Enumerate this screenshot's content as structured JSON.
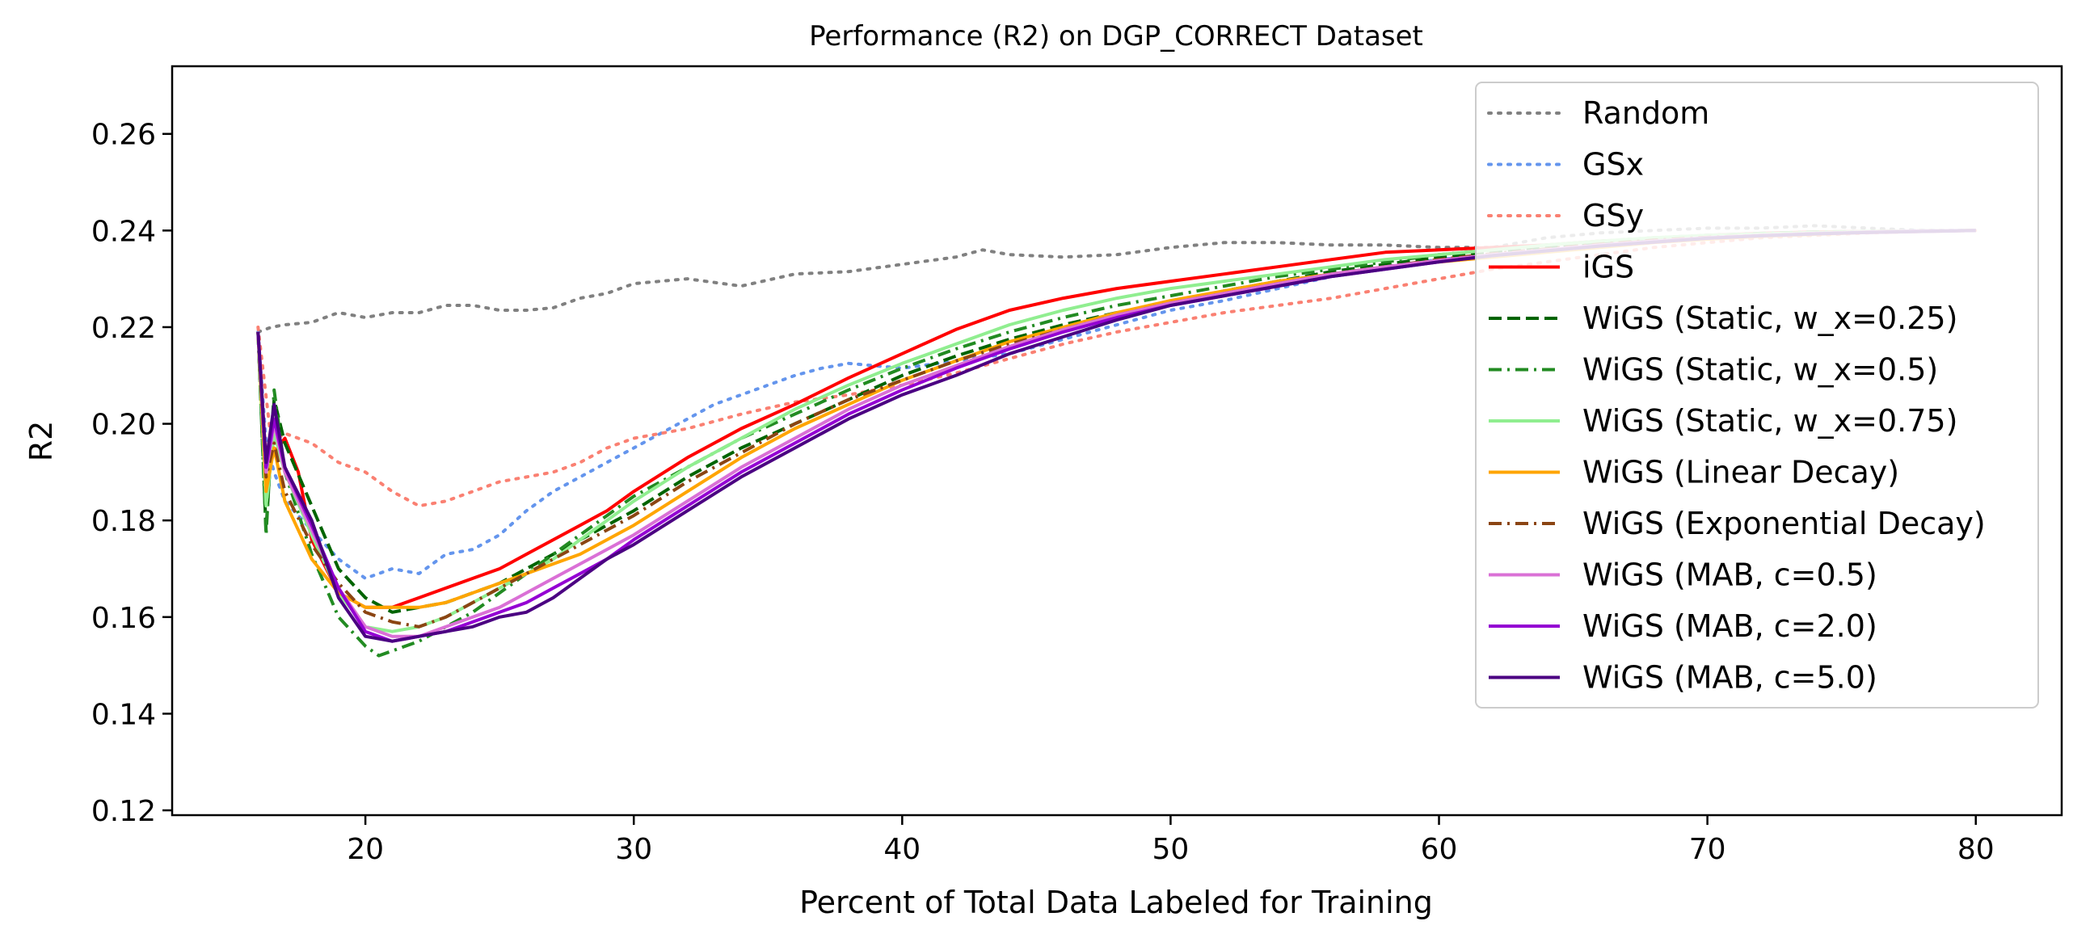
{
  "chart_data": {
    "type": "line",
    "title": "Performance (R2) on DGP_CORRECT Dataset",
    "xlabel": "Percent of Total Data Labeled for Training",
    "ylabel": "R2",
    "xlim": [
      12.8,
      83.2
    ],
    "ylim": [
      0.119,
      0.274
    ],
    "xticks": [
      20,
      30,
      40,
      50,
      60,
      70,
      80
    ],
    "yticks": [
      0.12,
      0.14,
      0.16,
      0.18,
      0.2,
      0.22,
      0.24,
      0.26
    ],
    "ytick_labels": [
      "0.12",
      "0.14",
      "0.16",
      "0.18",
      "0.20",
      "0.22",
      "0.24",
      "0.26"
    ],
    "xtick_labels": [
      "20",
      "30",
      "40",
      "50",
      "60",
      "70",
      "80"
    ],
    "grid": false,
    "legend_position": "top-right",
    "series": [
      {
        "name": "Random",
        "color": "#808080",
        "dash": "dotted",
        "x": [
          16,
          16.5,
          17,
          18,
          19,
          20,
          21,
          22,
          23,
          24,
          25,
          26,
          27,
          28,
          29,
          30,
          32,
          34,
          36,
          38,
          40,
          42,
          43,
          44,
          46,
          48,
          50,
          52,
          54,
          56,
          58,
          60,
          62,
          64,
          66,
          68,
          70,
          72,
          74,
          76,
          78,
          80
        ],
        "y": [
          0.219,
          0.22,
          0.2205,
          0.221,
          0.223,
          0.222,
          0.223,
          0.223,
          0.2245,
          0.2245,
          0.2235,
          0.2235,
          0.224,
          0.226,
          0.227,
          0.229,
          0.23,
          0.2285,
          0.231,
          0.2315,
          0.233,
          0.2345,
          0.236,
          0.235,
          0.2345,
          0.235,
          0.2365,
          0.2375,
          0.2375,
          0.237,
          0.237,
          0.2365,
          0.2365,
          0.2385,
          0.2395,
          0.24,
          0.2405,
          0.2405,
          0.241,
          0.2405,
          0.24,
          0.24
        ]
      },
      {
        "name": "GSx",
        "color": "#6495ED",
        "dash": "dotted",
        "x": [
          16,
          16.3,
          16.6,
          17,
          18,
          19,
          20,
          21,
          22,
          23,
          24,
          25,
          26,
          27,
          28,
          29,
          30,
          31,
          32,
          33,
          34,
          35,
          36,
          37,
          38,
          39,
          40,
          42,
          44,
          46,
          48,
          50,
          52,
          54,
          56,
          58,
          60,
          62,
          64,
          66,
          68,
          70,
          72,
          74,
          76,
          78,
          80
        ],
        "y": [
          0.219,
          0.196,
          0.19,
          0.184,
          0.178,
          0.172,
          0.168,
          0.17,
          0.169,
          0.173,
          0.174,
          0.177,
          0.182,
          0.186,
          0.189,
          0.192,
          0.195,
          0.198,
          0.201,
          0.204,
          0.206,
          0.208,
          0.21,
          0.2115,
          0.2125,
          0.212,
          0.2115,
          0.213,
          0.2145,
          0.2175,
          0.2205,
          0.2235,
          0.2255,
          0.228,
          0.2305,
          0.2325,
          0.234,
          0.235,
          0.236,
          0.237,
          0.238,
          0.2385,
          0.239,
          0.2395,
          0.2398,
          0.24,
          0.24
        ]
      },
      {
        "name": "GSy",
        "color": "#FA8072",
        "dash": "dotted",
        "x": [
          16,
          16.5,
          17,
          18,
          19,
          20,
          21,
          22,
          23,
          24,
          25,
          26,
          27,
          28,
          29,
          30,
          32,
          34,
          36,
          38,
          40,
          42,
          44,
          46,
          48,
          50,
          52,
          54,
          56,
          58,
          60,
          62,
          64,
          66,
          68,
          70,
          72,
          74,
          76,
          78,
          80
        ],
        "y": [
          0.22,
          0.196,
          0.198,
          0.196,
          0.192,
          0.19,
          0.186,
          0.183,
          0.184,
          0.186,
          0.188,
          0.189,
          0.19,
          0.192,
          0.195,
          0.197,
          0.199,
          0.202,
          0.2045,
          0.206,
          0.208,
          0.2105,
          0.2135,
          0.2165,
          0.219,
          0.221,
          0.223,
          0.2245,
          0.226,
          0.228,
          0.23,
          0.232,
          0.2335,
          0.235,
          0.2365,
          0.2375,
          0.2385,
          0.239,
          0.2395,
          0.2398,
          0.24
        ]
      },
      {
        "name": "iGS",
        "color": "#FF0000",
        "dash": "solid",
        "x": [
          16,
          16.3,
          16.6,
          17,
          17.5,
          18,
          19,
          20,
          21,
          22,
          23,
          24,
          25,
          26,
          27,
          28,
          29,
          30,
          32,
          34,
          36,
          38,
          40,
          42,
          44,
          46,
          48,
          50,
          52,
          54,
          56,
          58,
          60,
          62,
          64,
          66,
          68,
          70,
          72,
          74,
          76,
          78,
          80
        ],
        "y": [
          0.219,
          0.192,
          0.194,
          0.197,
          0.19,
          0.176,
          0.165,
          0.162,
          0.162,
          0.164,
          0.166,
          0.168,
          0.17,
          0.173,
          0.176,
          0.179,
          0.182,
          0.186,
          0.193,
          0.199,
          0.204,
          0.2095,
          0.2145,
          0.2195,
          0.2235,
          0.226,
          0.228,
          0.2295,
          0.231,
          0.2325,
          0.234,
          0.2355,
          0.236,
          0.2365,
          0.237,
          0.2378,
          0.2384,
          0.239,
          0.2394,
          0.2397,
          0.2398,
          0.2399,
          0.24
        ]
      },
      {
        "name": "WiGS (Static, w_x=0.25)",
        "color": "#006400",
        "dash": "dashed",
        "x": [
          16,
          16.3,
          16.6,
          17,
          18,
          19,
          20,
          21,
          22,
          23,
          24,
          25,
          26,
          27,
          28,
          29,
          30,
          32,
          34,
          36,
          38,
          40,
          42,
          44,
          46,
          48,
          50,
          52,
          54,
          56,
          58,
          60,
          62,
          64,
          66,
          68,
          70,
          72,
          74,
          76,
          78,
          80
        ],
        "y": [
          0.219,
          0.178,
          0.205,
          0.196,
          0.183,
          0.17,
          0.164,
          0.161,
          0.162,
          0.163,
          0.165,
          0.167,
          0.17,
          0.173,
          0.176,
          0.179,
          0.182,
          0.189,
          0.195,
          0.2,
          0.205,
          0.21,
          0.214,
          0.2175,
          0.2205,
          0.223,
          0.225,
          0.2275,
          0.2295,
          0.2315,
          0.233,
          0.2345,
          0.2355,
          0.2365,
          0.2375,
          0.2382,
          0.2388,
          0.2392,
          0.2395,
          0.2397,
          0.2399,
          0.24
        ]
      },
      {
        "name": "WiGS (Static, w_x=0.5)",
        "color": "#228B22",
        "dash": "dashdot",
        "x": [
          16,
          16.3,
          16.6,
          17,
          18,
          19,
          20,
          20.5,
          21,
          22,
          23,
          24,
          25,
          26,
          27,
          28,
          29,
          30,
          32,
          34,
          36,
          38,
          40,
          42,
          44,
          46,
          48,
          50,
          52,
          54,
          56,
          58,
          60,
          62,
          64,
          66,
          68,
          70,
          72,
          74,
          76,
          78,
          80
        ],
        "y": [
          0.219,
          0.177,
          0.207,
          0.19,
          0.173,
          0.16,
          0.154,
          0.152,
          0.153,
          0.155,
          0.158,
          0.161,
          0.165,
          0.169,
          0.173,
          0.177,
          0.181,
          0.185,
          0.191,
          0.197,
          0.202,
          0.207,
          0.2115,
          0.2155,
          0.219,
          0.222,
          0.2245,
          0.2265,
          0.2285,
          0.2305,
          0.232,
          0.2335,
          0.235,
          0.236,
          0.237,
          0.2378,
          0.2385,
          0.239,
          0.2394,
          0.2397,
          0.2398,
          0.2399,
          0.24
        ]
      },
      {
        "name": "WiGS (Static, w_x=0.75)",
        "color": "#90EE90",
        "dash": "solid",
        "x": [
          16,
          16.3,
          16.6,
          17,
          18,
          19,
          20,
          21,
          22,
          23,
          24,
          25,
          26,
          27,
          28,
          29,
          30,
          32,
          34,
          36,
          38,
          40,
          42,
          44,
          46,
          48,
          50,
          52,
          54,
          56,
          58,
          60,
          62,
          64,
          66,
          68,
          70,
          72,
          74,
          76,
          78,
          80
        ],
        "y": [
          0.219,
          0.183,
          0.198,
          0.19,
          0.177,
          0.165,
          0.158,
          0.157,
          0.158,
          0.16,
          0.163,
          0.166,
          0.169,
          0.172,
          0.176,
          0.18,
          0.184,
          0.191,
          0.197,
          0.203,
          0.208,
          0.2125,
          0.2165,
          0.2205,
          0.2235,
          0.226,
          0.228,
          0.2295,
          0.231,
          0.2325,
          0.234,
          0.235,
          0.236,
          0.237,
          0.2378,
          0.2385,
          0.239,
          0.2393,
          0.2396,
          0.2398,
          0.2399,
          0.24
        ]
      },
      {
        "name": "WiGS (Linear Decay)",
        "color": "#FFA500",
        "dash": "solid",
        "x": [
          16,
          16.3,
          16.6,
          17,
          18,
          19,
          20,
          21,
          22,
          23,
          24,
          25,
          26,
          27,
          28,
          29,
          30,
          32,
          34,
          36,
          38,
          40,
          42,
          44,
          46,
          48,
          50,
          52,
          54,
          56,
          58,
          60,
          62,
          64,
          66,
          68,
          70,
          72,
          74,
          76,
          78,
          80
        ],
        "y": [
          0.219,
          0.186,
          0.195,
          0.184,
          0.172,
          0.165,
          0.162,
          0.162,
          0.162,
          0.163,
          0.165,
          0.167,
          0.169,
          0.171,
          0.173,
          0.176,
          0.179,
          0.186,
          0.193,
          0.199,
          0.204,
          0.209,
          0.213,
          0.217,
          0.22,
          0.223,
          0.2255,
          0.2275,
          0.2295,
          0.231,
          0.2325,
          0.2335,
          0.2345,
          0.2355,
          0.2365,
          0.2375,
          0.2382,
          0.2388,
          0.2392,
          0.2396,
          0.2398,
          0.24
        ]
      },
      {
        "name": "WiGS (Exponential Decay)",
        "color": "#8B4513",
        "dash": "dashdot",
        "x": [
          16,
          16.3,
          16.6,
          17,
          18,
          19,
          20,
          21,
          22,
          23,
          24,
          25,
          26,
          27,
          28,
          29,
          30,
          32,
          34,
          36,
          38,
          40,
          42,
          44,
          46,
          48,
          50,
          52,
          54,
          56,
          58,
          60,
          62,
          64,
          66,
          68,
          70,
          72,
          74,
          76,
          78,
          80
        ],
        "y": [
          0.219,
          0.189,
          0.196,
          0.186,
          0.175,
          0.167,
          0.161,
          0.159,
          0.158,
          0.16,
          0.163,
          0.166,
          0.169,
          0.172,
          0.175,
          0.178,
          0.181,
          0.188,
          0.194,
          0.2,
          0.205,
          0.209,
          0.213,
          0.2165,
          0.2195,
          0.2225,
          0.225,
          0.227,
          0.229,
          0.231,
          0.2325,
          0.234,
          0.2352,
          0.2362,
          0.2372,
          0.238,
          0.2386,
          0.239,
          0.2394,
          0.2397,
          0.2399,
          0.24
        ]
      },
      {
        "name": "WiGS (MAB, c=0.5)",
        "color": "#DA70D6",
        "dash": "solid",
        "x": [
          16,
          16.3,
          16.6,
          17,
          18,
          19,
          20,
          21,
          22,
          23,
          24,
          25,
          26,
          27,
          28,
          29,
          30,
          32,
          34,
          36,
          38,
          40,
          42,
          44,
          46,
          48,
          50,
          52,
          54,
          56,
          58,
          60,
          62,
          64,
          66,
          68,
          70,
          72,
          74,
          76,
          78,
          80
        ],
        "y": [
          0.219,
          0.19,
          0.2,
          0.19,
          0.178,
          0.166,
          0.158,
          0.156,
          0.156,
          0.158,
          0.16,
          0.162,
          0.165,
          0.168,
          0.171,
          0.174,
          0.177,
          0.184,
          0.191,
          0.197,
          0.203,
          0.208,
          0.212,
          0.216,
          0.2195,
          0.2225,
          0.225,
          0.227,
          0.229,
          0.231,
          0.2325,
          0.2338,
          0.235,
          0.236,
          0.237,
          0.2378,
          0.2385,
          0.239,
          0.2394,
          0.2397,
          0.2399,
          0.24
        ]
      },
      {
        "name": "WiGS (MAB, c=2.0)",
        "color": "#9400D3",
        "dash": "solid",
        "x": [
          16,
          16.3,
          16.6,
          17,
          18,
          19,
          20,
          21,
          22,
          23,
          24,
          25,
          26,
          27,
          28,
          29,
          30,
          32,
          34,
          36,
          38,
          40,
          42,
          44,
          46,
          48,
          50,
          52,
          54,
          56,
          58,
          60,
          62,
          64,
          66,
          68,
          70,
          72,
          74,
          76,
          78,
          80
        ],
        "y": [
          0.219,
          0.191,
          0.201,
          0.191,
          0.179,
          0.166,
          0.157,
          0.155,
          0.156,
          0.157,
          0.159,
          0.161,
          0.163,
          0.166,
          0.169,
          0.172,
          0.176,
          0.183,
          0.19,
          0.196,
          0.202,
          0.207,
          0.2115,
          0.2155,
          0.219,
          0.222,
          0.2245,
          0.2265,
          0.2285,
          0.2305,
          0.232,
          0.2335,
          0.2348,
          0.2358,
          0.2368,
          0.2376,
          0.2384,
          0.2389,
          0.2393,
          0.2396,
          0.2398,
          0.24
        ]
      },
      {
        "name": "WiGS (MAB, c=5.0)",
        "color": "#4B0082",
        "dash": "solid",
        "x": [
          16,
          16.3,
          16.6,
          17,
          18,
          19,
          20,
          21,
          22,
          23,
          24,
          25,
          26,
          27,
          28,
          29,
          30,
          32,
          34,
          36,
          38,
          40,
          42,
          44,
          46,
          48,
          50,
          52,
          54,
          56,
          58,
          60,
          62,
          64,
          66,
          68,
          70,
          72,
          74,
          76,
          78,
          80
        ],
        "y": [
          0.219,
          0.192,
          0.204,
          0.191,
          0.18,
          0.164,
          0.156,
          0.155,
          0.156,
          0.157,
          0.158,
          0.16,
          0.161,
          0.164,
          0.168,
          0.172,
          0.175,
          0.182,
          0.189,
          0.195,
          0.201,
          0.206,
          0.21,
          0.2145,
          0.218,
          0.2215,
          0.2245,
          0.2265,
          0.2285,
          0.2305,
          0.232,
          0.2335,
          0.2348,
          0.2358,
          0.2368,
          0.2376,
          0.2384,
          0.2389,
          0.2393,
          0.2396,
          0.2398,
          0.24
        ]
      }
    ]
  }
}
